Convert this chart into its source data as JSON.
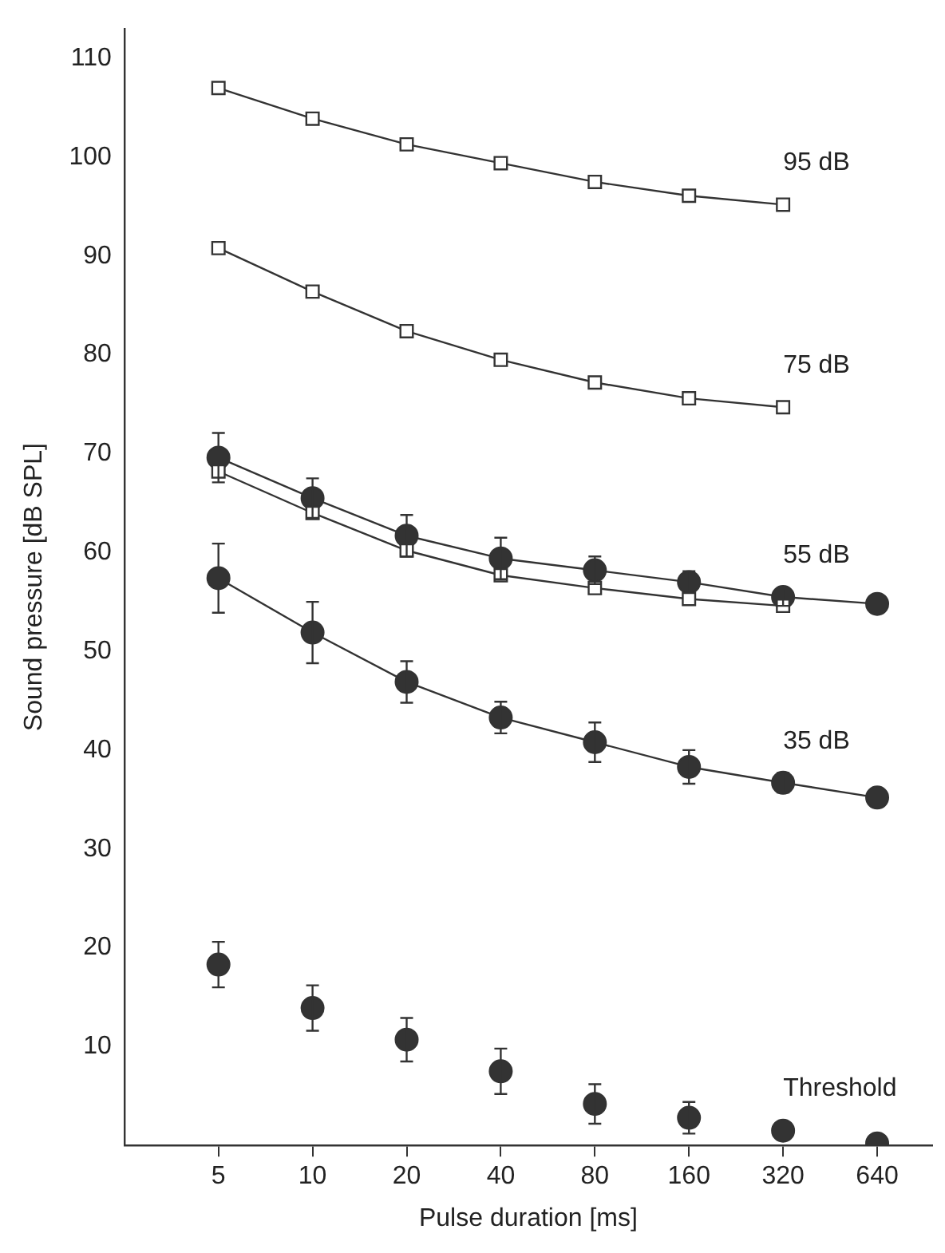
{
  "chart_data": {
    "type": "line",
    "xlabel": "Pulse duration [ms]",
    "ylabel": "Sound pressure [dB SPL]",
    "log": "x",
    "xlim": [
      2.5,
      960
    ],
    "xticks": [
      5,
      10,
      20,
      40,
      80,
      160,
      320,
      640
    ],
    "ylim": [
      0,
      113
    ],
    "yticks": [
      10,
      20,
      30,
      40,
      50,
      60,
      70,
      80,
      90,
      100,
      110
    ],
    "grid": false,
    "legend": false,
    "series": [
      {
        "name": "95 dB",
        "marker": "square",
        "color": "#333333",
        "x": [
          5,
          10,
          20,
          40,
          80,
          160,
          320
        ],
        "values": [
          107,
          103.9,
          101.3,
          99.4,
          97.5,
          96.1,
          95.2
        ]
      },
      {
        "name": "75 dB",
        "marker": "square",
        "color": "#333333",
        "x": [
          5,
          10,
          20,
          40,
          80,
          160,
          320
        ],
        "values": [
          90.8,
          86.4,
          82.4,
          79.5,
          77.2,
          75.6,
          74.7
        ]
      },
      {
        "marker": "square",
        "color": "#333333",
        "x": [
          5,
          10,
          20,
          40,
          80,
          160,
          320
        ],
        "values": [
          68.2,
          64.0,
          60.2,
          57.7,
          56.4,
          55.3,
          54.6
        ]
      },
      {
        "name": "55 dB",
        "marker": "circle",
        "color": "#333333",
        "x": [
          5,
          10,
          20,
          40,
          80,
          160,
          320,
          640
        ],
        "values": [
          69.6,
          65.5,
          61.7,
          59.4,
          58.2,
          57.0,
          55.5,
          54.8
        ],
        "errors": [
          2.5,
          2.0,
          2.1,
          2.1,
          1.4,
          1.1,
          0.9,
          null
        ]
      },
      {
        "name": "35 dB",
        "marker": "circle",
        "color": "#333333",
        "x": [
          5,
          10,
          20,
          40,
          80,
          160,
          320,
          640
        ],
        "values": [
          57.4,
          51.9,
          46.9,
          43.3,
          40.8,
          38.3,
          36.7,
          35.2
        ],
        "errors": [
          3.5,
          3.1,
          2.1,
          1.6,
          2.0,
          1.7,
          1.0,
          null
        ]
      },
      {
        "name": "Threshold",
        "type": "scatter",
        "marker": "circle",
        "color": "#333333",
        "x": [
          5,
          10,
          20,
          40,
          80,
          160,
          320,
          640
        ],
        "values": [
          18.3,
          13.9,
          10.7,
          7.5,
          4.2,
          2.8,
          1.5,
          0.2
        ],
        "errors": [
          2.3,
          2.3,
          2.2,
          2.3,
          2.0,
          1.6,
          null,
          null
        ]
      }
    ]
  }
}
